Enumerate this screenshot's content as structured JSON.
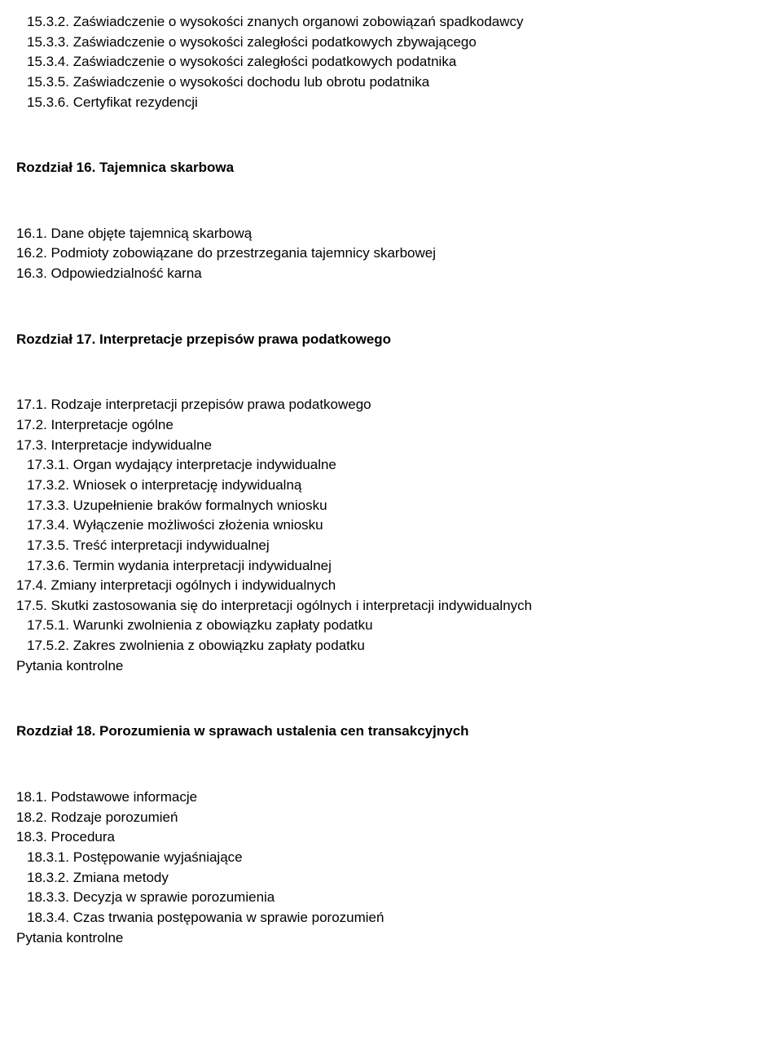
{
  "text_color": "#000000",
  "bg_color": "#ffffff",
  "font_family": "Verdana, Geneva, sans-serif",
  "font_size_pt": 13,
  "lines": [
    {
      "text": "15.3.2. Zaświadczenie o wysokości znanych organowi zobowiązań spadkodawcy",
      "indent": 1,
      "bold": false
    },
    {
      "text": "15.3.3. Zaświadczenie o wysokości zaległości podatkowych zbywającego",
      "indent": 1,
      "bold": false
    },
    {
      "text": "15.3.4. Zaświadczenie o wysokości zaległości podatkowych podatnika",
      "indent": 1,
      "bold": false
    },
    {
      "text": "15.3.5. Zaświadczenie o wysokości dochodu lub obrotu podatnika",
      "indent": 1,
      "bold": false
    },
    {
      "text": "15.3.6. Certyfikat rezydencji",
      "indent": 1,
      "bold": false
    },
    {
      "gap": "large"
    },
    {
      "text": "Rozdział 16. Tajemnica skarbowa",
      "indent": 0,
      "bold": true
    },
    {
      "gap": "medium"
    },
    {
      "text": "16.1. Dane objęte tajemnicą skarbową",
      "indent": 0,
      "bold": false
    },
    {
      "text": "16.2. Podmioty zobowiązane do przestrzegania tajemnicy skarbowej",
      "indent": 0,
      "bold": false
    },
    {
      "text": "16.3. Odpowiedzialność karna",
      "indent": 0,
      "bold": false
    },
    {
      "gap": "large"
    },
    {
      "text": "Rozdział 17. Interpretacje przepisów prawa podatkowego",
      "indent": 0,
      "bold": true
    },
    {
      "gap": "medium"
    },
    {
      "text": "17.1. Rodzaje interpretacji przepisów prawa podatkowego",
      "indent": 0,
      "bold": false
    },
    {
      "text": "17.2. Interpretacje ogólne",
      "indent": 0,
      "bold": false
    },
    {
      "text": "17.3. Interpretacje indywidualne",
      "indent": 0,
      "bold": false
    },
    {
      "text": "17.3.1. Organ wydający interpretacje indywidualne",
      "indent": 1,
      "bold": false
    },
    {
      "text": "17.3.2. Wniosek o interpretację indywidualną",
      "indent": 1,
      "bold": false
    },
    {
      "text": "17.3.3. Uzupełnienie braków formalnych wniosku",
      "indent": 1,
      "bold": false
    },
    {
      "text": "17.3.4. Wyłączenie możliwości złożenia wniosku",
      "indent": 1,
      "bold": false
    },
    {
      "text": "17.3.5. Treść interpretacji indywidualnej",
      "indent": 1,
      "bold": false
    },
    {
      "text": "17.3.6. Termin wydania interpretacji indywidualnej",
      "indent": 1,
      "bold": false
    },
    {
      "text": "17.4. Zmiany interpretacji ogólnych i indywidualnych",
      "indent": 0,
      "bold": false
    },
    {
      "text": "17.5. Skutki zastosowania się do interpretacji ogólnych i interpretacji indywidualnych",
      "indent": 0,
      "bold": false
    },
    {
      "text": "17.5.1. Warunki zwolnienia z obowiązku zapłaty podatku",
      "indent": 1,
      "bold": false
    },
    {
      "text": "17.5.2. Zakres zwolnienia z obowiązku zapłaty podatku",
      "indent": 1,
      "bold": false
    },
    {
      "text": "Pytania kontrolne",
      "indent": 0,
      "bold": false
    },
    {
      "gap": "large"
    },
    {
      "text": "Rozdział 18. Porozumienia w sprawach ustalenia cen transakcyjnych",
      "indent": 0,
      "bold": true
    },
    {
      "gap": "medium"
    },
    {
      "text": "18.1. Podstawowe informacje",
      "indent": 0,
      "bold": false
    },
    {
      "text": "18.2. Rodzaje porozumień",
      "indent": 0,
      "bold": false
    },
    {
      "text": "18.3. Procedura",
      "indent": 0,
      "bold": false
    },
    {
      "text": "18.3.1. Postępowanie wyjaśniające",
      "indent": 1,
      "bold": false
    },
    {
      "text": "18.3.2. Zmiana metody",
      "indent": 1,
      "bold": false
    },
    {
      "text": "18.3.3. Decyzja w sprawie porozumienia",
      "indent": 1,
      "bold": false
    },
    {
      "text": "18.3.4. Czas trwania postępowania w sprawie porozumień",
      "indent": 1,
      "bold": false
    },
    {
      "text": "Pytania kontrolne",
      "indent": 0,
      "bold": false
    }
  ]
}
